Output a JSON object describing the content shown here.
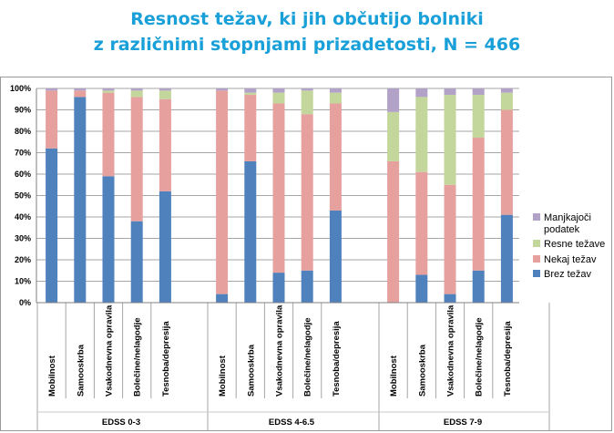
{
  "chart_data": {
    "type": "bar",
    "stacked": true,
    "title_line1": "Resnost težav, ki jih občutijo bolniki",
    "title_line2": "z različnimi stopnjami prizadetosti, N = 466",
    "yticks": [
      "0%",
      "10%",
      "20%",
      "30%",
      "40%",
      "50%",
      "60%",
      "70%",
      "80%",
      "90%",
      "100%"
    ],
    "ylim": [
      0,
      100
    ],
    "groups": [
      {
        "name": "EDSS 0-3",
        "categories": [
          "Mobilnost",
          "Samooskrba",
          "Vsakodnevna opravila",
          "Bolečine/nelagodje",
          "Tesnoba/depresija"
        ],
        "series": [
          {
            "name": "Brez težav",
            "values": [
              72,
              96,
              59,
              38,
              52
            ]
          },
          {
            "name": "Nekaj težav",
            "values": [
              27,
              3,
              39,
              58,
              43
            ]
          },
          {
            "name": "Resne težave",
            "values": [
              0,
              0,
              1,
              3,
              4
            ]
          },
          {
            "name": "Manjkajoči podatek",
            "values": [
              1,
              1,
              1,
              1,
              1
            ]
          }
        ]
      },
      {
        "name": "EDSS 4-6.5",
        "categories": [
          "Mobilnost",
          "Samooskrba",
          "Vsakodnevna opravila",
          "Bolečine/nelagodje",
          "Tesnoba/depresija"
        ],
        "series": [
          {
            "name": "Brez težav",
            "values": [
              4,
              66,
              14,
              15,
              43
            ]
          },
          {
            "name": "Nekaj težav",
            "values": [
              95,
              31,
              79,
              73,
              50
            ]
          },
          {
            "name": "Resne težave",
            "values": [
              0,
              1,
              5,
              11,
              5
            ]
          },
          {
            "name": "Manjkajoči podatek",
            "values": [
              1,
              2,
              2,
              1,
              2
            ]
          }
        ]
      },
      {
        "name": "EDSS 7-9",
        "categories": [
          "Mobilnost",
          "Samooskrba",
          "Vsakodnevna opravila",
          "Bolečine/nelagodje",
          "Tesnoba/depresija"
        ],
        "series": [
          {
            "name": "Brez težav",
            "values": [
              0,
              13,
              4,
              15,
              41
            ]
          },
          {
            "name": "Nekaj težav",
            "values": [
              66,
              48,
              51,
              62,
              49
            ]
          },
          {
            "name": "Resne težave",
            "values": [
              23,
              35,
              42,
              20,
              8
            ]
          },
          {
            "name": "Manjkajoči podatek",
            "values": [
              11,
              4,
              3,
              3,
              2
            ]
          }
        ]
      }
    ],
    "legend": {
      "placement": "right",
      "items": [
        {
          "line1": "Manjkajoči",
          "line2": "podatek",
          "color": "#b3a2c7"
        },
        {
          "line1": "Resne težave",
          "line2": "",
          "color": "#c3d69b"
        },
        {
          "line1": "Nekaj težav",
          "line2": "",
          "color": "#e6a09e"
        },
        {
          "line1": "Brez težav",
          "line2": "",
          "color": "#4f81bd"
        }
      ]
    },
    "colors": {
      "Brez težav": "#4f81bd",
      "Nekaj težav": "#e6a09e",
      "Resne težave": "#c3d69b",
      "Manjkajoči podatek": "#b3a2c7"
    },
    "grid": true
  }
}
